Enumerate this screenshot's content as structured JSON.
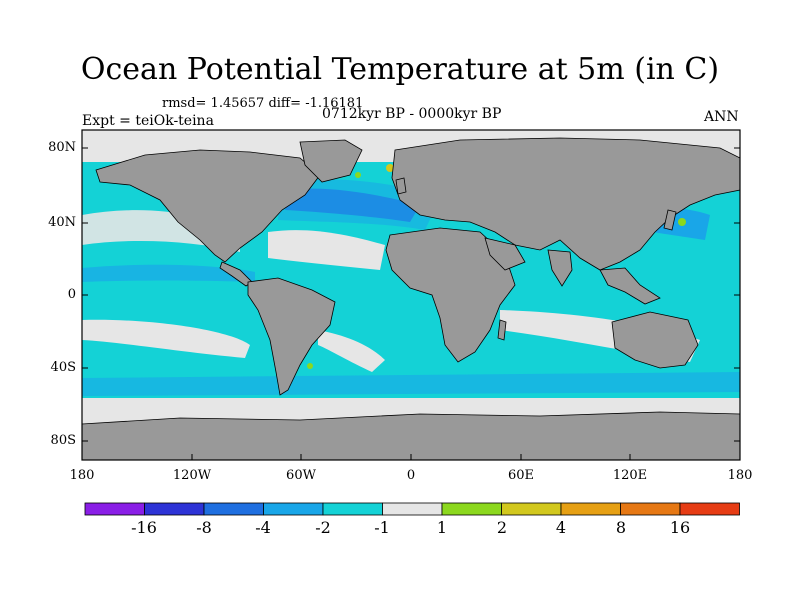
{
  "title": "Ocean Potential Temperature at 5m (in C)",
  "stats_text": "rmsd= 1.45657  diff= -1.16181",
  "period_text": "0712kyr BP - 0000kyr BP",
  "experiment_text": "Expt = teiOk-teina",
  "season_text": "ANN",
  "lat_labels": [
    "80N",
    "40N",
    "0",
    "40S",
    "80S"
  ],
  "lon_labels": [
    "180",
    "120W",
    "60W",
    "0",
    "60E",
    "120E",
    "180"
  ],
  "colorbar": {
    "colors": [
      "#8a1ee6",
      "#2d33d6",
      "#1f6fe0",
      "#19a6e8",
      "#14d2d6",
      "#e6e6e6",
      "#8cd81e",
      "#d2c81e",
      "#e6a014",
      "#e67814",
      "#e63c14"
    ],
    "labels": [
      "-16",
      "-8",
      "-4",
      "-2",
      "-1",
      "1",
      "2",
      "4",
      "8",
      "16"
    ]
  },
  "legend_colors": {
    "land": "#999999",
    "ocean_base": "#14d2d6",
    "neutral": "#e6e6e6",
    "cool": "#19a6e8",
    "colder": "#1f6fe0",
    "warm": "#8cd81e"
  }
}
